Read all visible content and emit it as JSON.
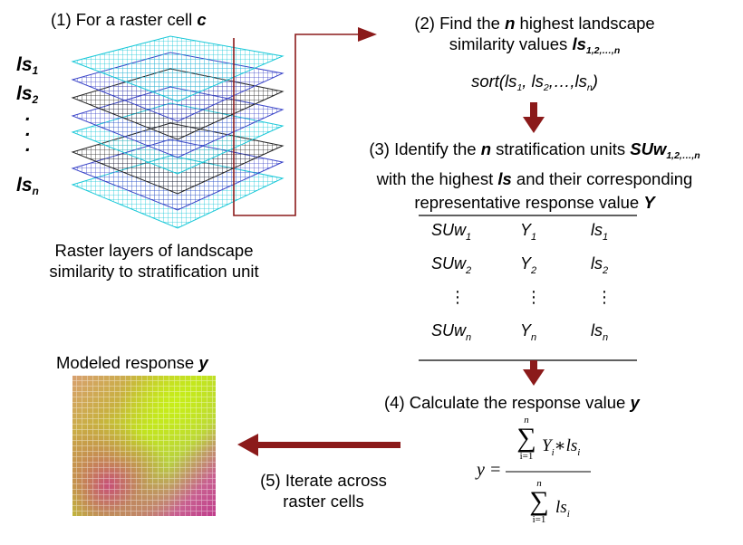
{
  "step1": {
    "label": "(1) For a raster cell ",
    "var": "c"
  },
  "layer_labels": {
    "ls1": {
      "base": "ls",
      "sub": "1"
    },
    "ls2": {
      "base": "ls",
      "sub": "2"
    },
    "dots": [
      ".",
      ".",
      "."
    ],
    "lsn": {
      "base": "ls",
      "sub": "n"
    }
  },
  "raster_caption": {
    "line1": "Raster layers of landscape",
    "line2": "similarity to stratification unit"
  },
  "step2": {
    "line1_pre": "(2) Find the ",
    "line1_var": "n",
    "line1_post": " highest landscape",
    "line2_pre": "similarity values ",
    "line2_var": "ls",
    "line2_sub": "1,2,…,n",
    "sort_expr": {
      "open": "sort(ls",
      "s1": "1",
      "m1": ", ls",
      "s2": "2",
      "m2": ",…,ls",
      "sn": "n",
      "close": ")"
    }
  },
  "step3": {
    "line1_pre": "(3) Identify the ",
    "line1_var": "n",
    "line1_mid": " stratification units ",
    "line1_var2": "SUw",
    "line1_sub": "1,2,…,n",
    "line2_pre": "with the highest ",
    "line2_var": "ls",
    "line2_post": " and their corresponding",
    "line3_pre": "representative response value ",
    "line3_var": "Y"
  },
  "table": {
    "rows": [
      {
        "a": "SUw",
        "as": "1",
        "b": "Y",
        "bs": "1",
        "c": "ls",
        "cs": "1"
      },
      {
        "a": "SUw",
        "as": "2",
        "b": "Y",
        "bs": "2",
        "c": "ls",
        "cs": "2"
      },
      {
        "a": "⋮",
        "as": "",
        "b": "⋮",
        "bs": "",
        "c": "⋮",
        "cs": ""
      },
      {
        "a": "SUw",
        "as": "n",
        "b": "Y",
        "bs": "n",
        "c": "ls",
        "cs": "n"
      }
    ]
  },
  "step4": {
    "label": "(4) Calculate the response value ",
    "var": "y"
  },
  "formula": {
    "lhs": "y =",
    "num_sum_top": "n",
    "num_sum_bottom": "i=1",
    "num_body": "Y",
    "num_i1": "i",
    "num_star": "∗",
    "num_ls": "ls",
    "num_i2": "i",
    "den_sum_top": "n",
    "den_sum_bottom": "i=1",
    "den_ls": "ls",
    "den_i": "i",
    "sigma": "∑"
  },
  "step5": {
    "line1": "(5) Iterate across",
    "line2": "raster cells"
  },
  "modeled": {
    "label": "Modeled response ",
    "var": "y"
  },
  "colors": {
    "arrow": "#8b1a1a",
    "layer_dark": "#1a1a1a",
    "layer_blue": "#3040c0",
    "layer_cyan": "#10c8d8",
    "map_yellow_green": "#c8ee20",
    "map_magenta": "#c8408c"
  }
}
